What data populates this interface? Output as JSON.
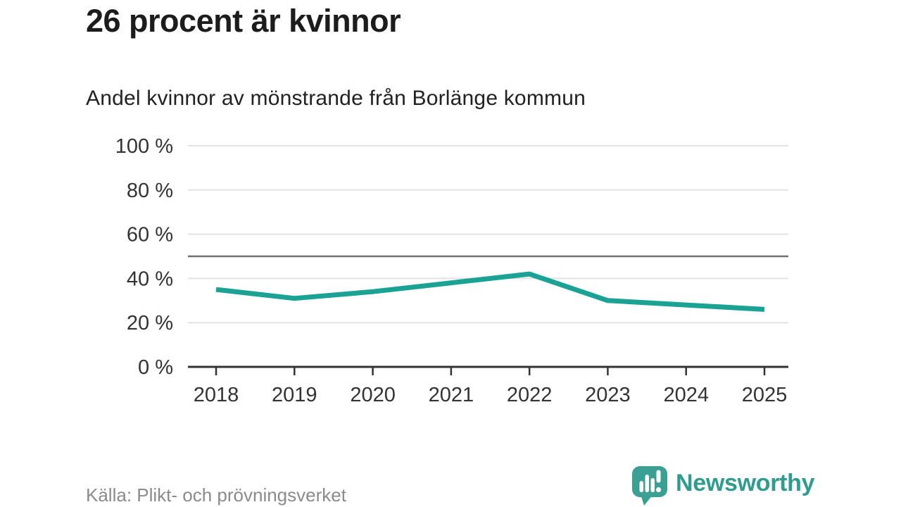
{
  "header": {
    "title": "26 procent är kvinnor",
    "subtitle": "Andel kvinnor av mönstrande från Borlänge kommun"
  },
  "chart_data": {
    "type": "line",
    "title": "26 procent är kvinnor",
    "subtitle": "Andel kvinnor av mönstrande från Borlänge kommun",
    "categories": [
      "2018",
      "2019",
      "2020",
      "2021",
      "2022",
      "2023",
      "2024",
      "2025"
    ],
    "series": [
      {
        "name": "Andel kvinnor av mönstrande",
        "values": [
          35,
          31,
          34,
          38,
          42,
          30,
          28,
          26
        ]
      }
    ],
    "unit": "%",
    "ylim": [
      0,
      100
    ],
    "yticks": [
      0,
      20,
      40,
      60,
      80,
      100
    ],
    "ytick_suffix": " %",
    "reference_line": 50,
    "grid": "horizontal",
    "legend": "none",
    "line_color": "#1aa394",
    "refline_color": "#6f6f6f",
    "gridline_color": "#e2e2e2",
    "axis_color": "#333333",
    "tick_label_color": "#333333"
  },
  "footer": {
    "source": "Källa: Plikt- och prövningsverket",
    "logo_text": "Newsworthy",
    "logo_color": "#3aa093"
  }
}
